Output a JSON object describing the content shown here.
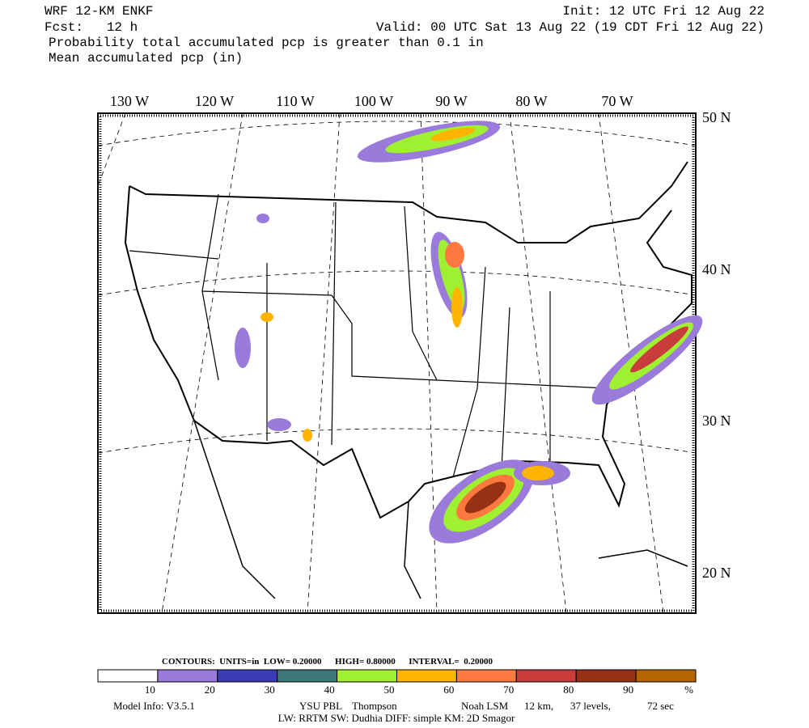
{
  "header": {
    "model": "WRF 12-KM ENKF",
    "init": "Init: 12 UTC Fri 12 Aug 22",
    "forecast": "Fcst:   12 h",
    "valid": "Valid: 00 UTC Sat 13 Aug 22 (19 CDT Fri 12 Aug 22)",
    "line1": "Probability total accumulated pcp is greater than 0.1 in",
    "line2": "Mean accumulated pcp (in)"
  },
  "map": {
    "longitudes": [
      "130 W",
      "120 W",
      "110 W",
      "100 W",
      "90 W",
      "80 W",
      "70 W"
    ],
    "latitudes": [
      "50 N",
      "40 N",
      "30 N",
      "20 N"
    ]
  },
  "contours": "CONTOURS:  UNITS=in  LOW= 0.20000      HIGH= 0.80000      INTERVAL=  0.20000",
  "colorbar": {
    "colors": [
      "#ffffff",
      "#9a7ada",
      "#3c3cb4",
      "#3c7878",
      "#a0f032",
      "#ffb400",
      "#ff7840",
      "#c83c3c",
      "#963214",
      "#b46400"
    ],
    "labels": [
      "10",
      "20",
      "30",
      "40",
      "50",
      "60",
      "70",
      "80",
      "90",
      "%"
    ]
  },
  "model_info": {
    "line1": [
      "Model Info: V3.5.1",
      "YSU PBL",
      "Thompson",
      "Noah LSM",
      "12 km,",
      "37 levels,",
      "72 sec"
    ],
    "line2": "LW: RRTM SW: Dudhia  DIFF: simple KM: 2D Smagor"
  }
}
